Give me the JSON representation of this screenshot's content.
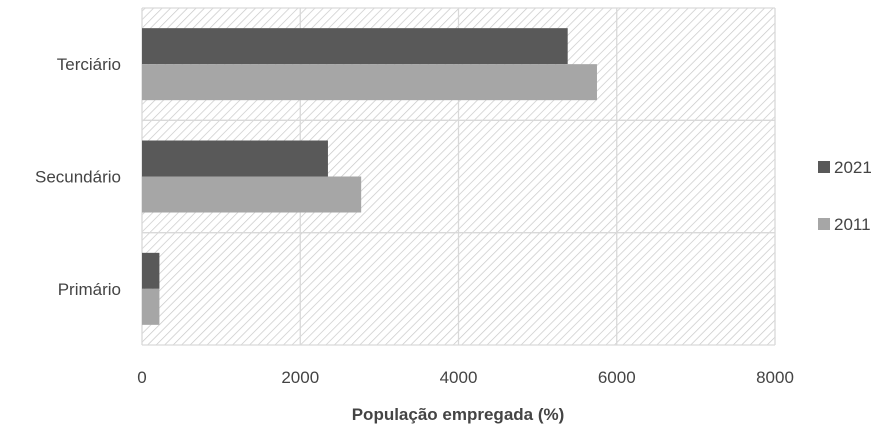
{
  "chart_data": {
    "type": "bar",
    "orientation": "horizontal",
    "categories": [
      "Terciário",
      "Secundário",
      "Primário"
    ],
    "series": [
      {
        "name": "2021",
        "values": [
          5380,
          2350,
          220
        ],
        "color": "#595959"
      },
      {
        "name": "2011",
        "values": [
          5750,
          2770,
          220
        ],
        "color": "#a6a6a6"
      }
    ],
    "xlabel": "População empregada (%)",
    "ylabel": "",
    "xlim": [
      0,
      8000
    ],
    "xticks": [
      "0",
      "2000",
      "4000",
      "6000",
      "8000"
    ],
    "grid": true,
    "legend_position": "right",
    "plot_background": "hatched light gray"
  }
}
